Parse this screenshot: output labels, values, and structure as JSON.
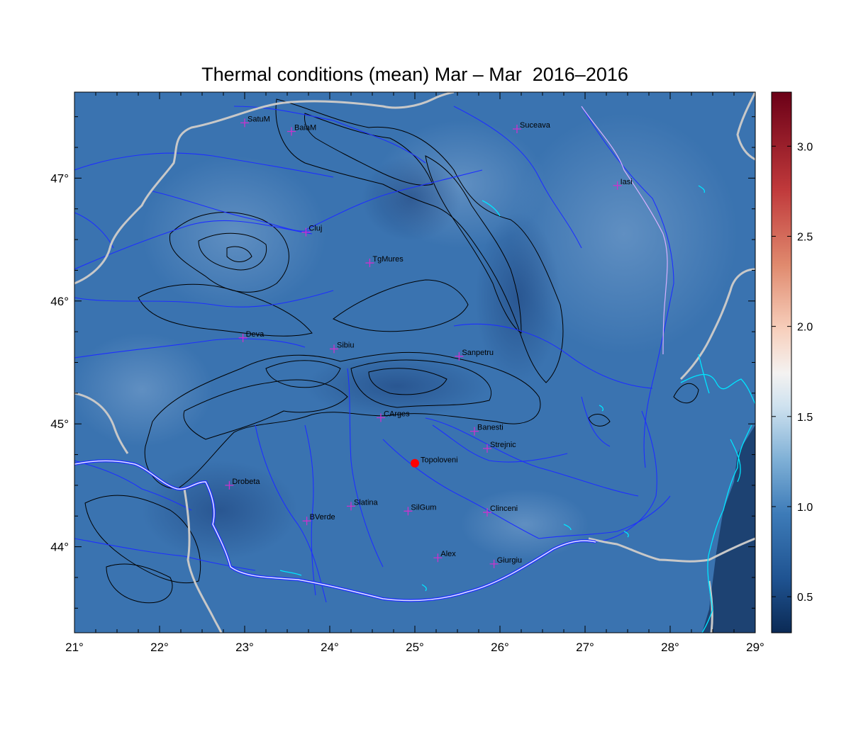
{
  "title": "Thermal conditions (mean) Mar – Mar  2016–2016",
  "map": {
    "lon_range": [
      21,
      29
    ],
    "lat_range": [
      43.3,
      47.7
    ],
    "lon_ticks": [
      "21°",
      "22°",
      "23°",
      "24°",
      "25°",
      "26°",
      "27°",
      "28°",
      "29°"
    ],
    "lat_ticks": [
      "44°",
      "45°",
      "46°",
      "47°"
    ],
    "field_color": "#3a73b0",
    "sea_color": "#1d4272",
    "marker_color": "#cc33cc",
    "highlight_color": "#ff0000"
  },
  "cities": [
    {
      "name": "SatuM",
      "lon": 23.0,
      "lat": 47.45
    },
    {
      "name": "BaiaM",
      "lon": 23.55,
      "lat": 47.38
    },
    {
      "name": "Suceava",
      "lon": 26.2,
      "lat": 47.4
    },
    {
      "name": "Iasi",
      "lon": 27.38,
      "lat": 46.94
    },
    {
      "name": "Cluj",
      "lon": 23.72,
      "lat": 46.56
    },
    {
      "name": "TgMures",
      "lon": 24.47,
      "lat": 46.31
    },
    {
      "name": "Deva",
      "lon": 22.98,
      "lat": 45.7
    },
    {
      "name": "Sibiu",
      "lon": 24.05,
      "lat": 45.61
    },
    {
      "name": "Sanpetru",
      "lon": 25.52,
      "lat": 45.55
    },
    {
      "name": "CArges",
      "lon": 24.6,
      "lat": 45.05
    },
    {
      "name": "Banesti",
      "lon": 25.7,
      "lat": 44.94
    },
    {
      "name": "Strejnic",
      "lon": 25.85,
      "lat": 44.8
    },
    {
      "name": "Drobeta",
      "lon": 22.82,
      "lat": 44.5
    },
    {
      "name": "Slatina",
      "lon": 24.25,
      "lat": 44.33
    },
    {
      "name": "SilGum",
      "lon": 24.92,
      "lat": 44.29
    },
    {
      "name": "Clinceni",
      "lon": 25.85,
      "lat": 44.28
    },
    {
      "name": "BVerde",
      "lon": 23.73,
      "lat": 44.21
    },
    {
      "name": "Alex",
      "lon": 25.27,
      "lat": 43.91
    },
    {
      "name": "Giurgiu",
      "lon": 25.93,
      "lat": 43.86
    }
  ],
  "highlight_city": {
    "name": "Topoloveni",
    "lon": 25.0,
    "lat": 44.68
  },
  "colorbar": {
    "min": 0.3,
    "max": 3.3,
    "ticks": [
      "0.5",
      "1.0",
      "1.5",
      "2.0",
      "2.5",
      "3.0"
    ],
    "tick_values": [
      0.5,
      1.0,
      1.5,
      2.0,
      2.5,
      3.0
    ]
  }
}
